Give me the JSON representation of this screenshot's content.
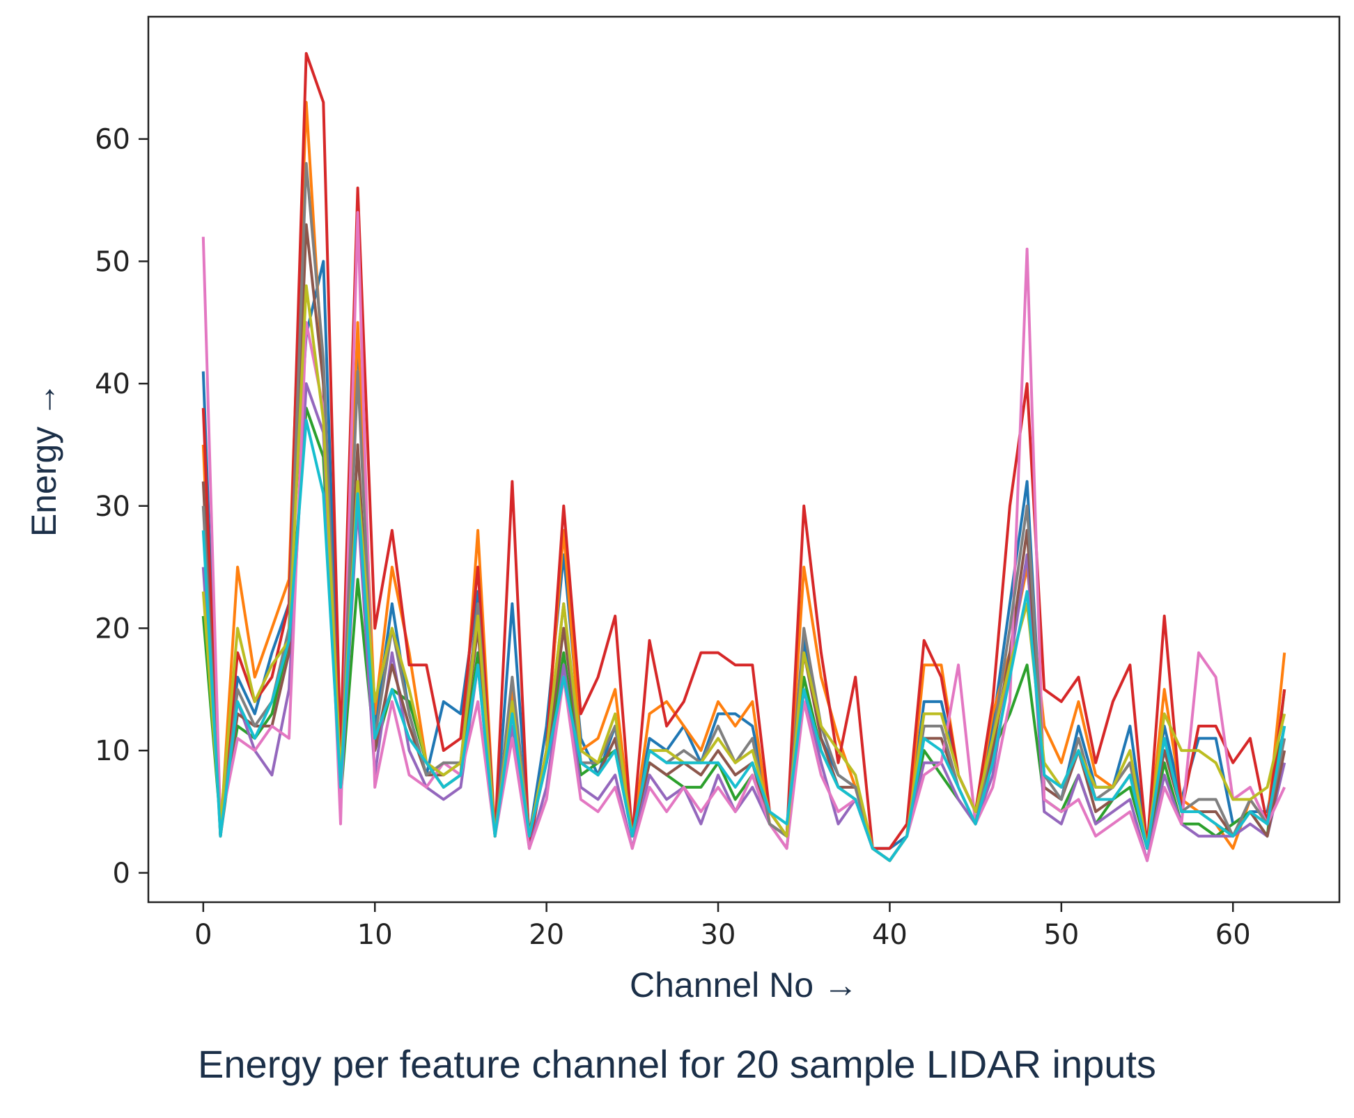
{
  "chart_data": {
    "type": "line",
    "caption": "Energy per feature channel for 20 sample LIDAR inputs",
    "xlabel": "Channel No →",
    "ylabel": "Energy →",
    "xlim": [
      -3.2,
      66.2
    ],
    "ylim": [
      -2.4,
      70
    ],
    "xticks": [
      0,
      10,
      20,
      30,
      40,
      50,
      60
    ],
    "yticks": [
      0,
      10,
      20,
      30,
      40,
      50,
      60
    ],
    "grid": false,
    "legend": "none",
    "x": [
      0,
      1,
      2,
      3,
      4,
      5,
      6,
      7,
      8,
      9,
      10,
      11,
      12,
      13,
      14,
      15,
      16,
      17,
      18,
      19,
      20,
      21,
      22,
      23,
      24,
      25,
      26,
      27,
      28,
      29,
      30,
      31,
      32,
      33,
      34,
      35,
      36,
      37,
      38,
      39,
      40,
      41,
      42,
      43,
      44,
      45,
      46,
      47,
      48,
      49,
      50,
      51,
      52,
      53,
      54,
      55,
      56,
      57,
      58,
      59,
      60,
      61,
      62,
      63
    ],
    "series": [
      {
        "color": "#1f77b4",
        "values": [
          41,
          3,
          16,
          13,
          18,
          22,
          44,
          50,
          8,
          44,
          12,
          22,
          13,
          8,
          14,
          13,
          23,
          3,
          22,
          3,
          12,
          26,
          11,
          8,
          12,
          3,
          11,
          10,
          12,
          9,
          13,
          13,
          12,
          5,
          3,
          19,
          11,
          8,
          7,
          2,
          2,
          3,
          14,
          14,
          8,
          5,
          12,
          22,
          32,
          7,
          6,
          12,
          7,
          7,
          12,
          2,
          12,
          6,
          11,
          11,
          4,
          5,
          5,
          12
        ]
      },
      {
        "color": "#ff7f0e",
        "values": [
          35,
          3,
          25,
          16,
          20,
          24,
          63,
          40,
          6,
          45,
          13,
          25,
          18,
          9,
          7,
          8,
          28,
          3,
          15,
          3,
          10,
          28,
          10,
          11,
          15,
          3,
          13,
          14,
          12,
          10,
          14,
          12,
          14,
          4,
          3,
          25,
          16,
          11,
          7,
          2,
          1,
          3,
          17,
          17,
          8,
          5,
          13,
          18,
          25,
          12,
          9,
          14,
          8,
          7,
          9,
          2,
          15,
          6,
          5,
          4,
          2,
          6,
          4,
          18
        ]
      },
      {
        "color": "#2ca02c",
        "values": [
          21,
          4,
          12,
          11,
          13,
          19,
          38,
          34,
          6,
          24,
          10,
          15,
          14,
          9,
          7,
          8,
          18,
          3,
          12,
          3,
          9,
          18,
          8,
          9,
          10,
          3,
          9,
          8,
          7,
          7,
          9,
          6,
          8,
          4,
          3,
          16,
          10,
          7,
          6,
          2,
          1,
          3,
          10,
          8,
          6,
          4,
          10,
          13,
          17,
          6,
          5,
          8,
          4,
          6,
          7,
          2,
          9,
          4,
          4,
          3,
          4,
          5,
          3,
          15
        ]
      },
      {
        "color": "#d62728",
        "values": [
          38,
          3,
          18,
          14,
          16,
          22,
          67,
          63,
          10,
          56,
          20,
          28,
          17,
          17,
          10,
          11,
          25,
          3,
          32,
          2,
          10,
          30,
          13,
          16,
          21,
          3,
          19,
          12,
          14,
          18,
          18,
          17,
          17,
          5,
          3,
          30,
          18,
          9,
          16,
          2,
          2,
          4,
          19,
          16,
          8,
          5,
          14,
          30,
          40,
          15,
          14,
          16,
          9,
          14,
          17,
          2,
          21,
          5,
          12,
          12,
          9,
          11,
          4,
          15
        ]
      },
      {
        "color": "#9467bd",
        "values": [
          25,
          4,
          14,
          10,
          8,
          15,
          40,
          36,
          6,
          30,
          8,
          18,
          10,
          7,
          6,
          7,
          17,
          3,
          12,
          2,
          7,
          17,
          7,
          6,
          8,
          2,
          8,
          6,
          7,
          4,
          8,
          5,
          7,
          4,
          2,
          15,
          9,
          4,
          6,
          2,
          1,
          3,
          9,
          9,
          6,
          4,
          8,
          17,
          26,
          5,
          4,
          8,
          4,
          5,
          6,
          1,
          8,
          4,
          3,
          3,
          3,
          4,
          3,
          9
        ]
      },
      {
        "color": "#8c564b",
        "values": [
          32,
          3,
          13,
          12,
          12,
          18,
          53,
          40,
          7,
          35,
          10,
          17,
          12,
          8,
          8,
          9,
          20,
          3,
          14,
          3,
          9,
          20,
          9,
          8,
          11,
          3,
          9,
          8,
          9,
          8,
          10,
          8,
          9,
          4,
          3,
          18,
          11,
          7,
          7,
          2,
          1,
          3,
          11,
          11,
          7,
          4,
          10,
          18,
          28,
          7,
          6,
          10,
          5,
          6,
          8,
          2,
          10,
          5,
          5,
          5,
          3,
          5,
          3,
          10
        ]
      },
      {
        "color": "#e377c2",
        "values": [
          52,
          4,
          11,
          10,
          12,
          11,
          45,
          38,
          4,
          54,
          7,
          14,
          8,
          7,
          9,
          8,
          14,
          3,
          11,
          2,
          6,
          16,
          6,
          5,
          7,
          2,
          7,
          5,
          7,
          5,
          7,
          5,
          8,
          4,
          2,
          14,
          8,
          5,
          6,
          2,
          1,
          3,
          8,
          9,
          17,
          4,
          7,
          14,
          51,
          6,
          5,
          6,
          3,
          4,
          5,
          1,
          7,
          4,
          18,
          16,
          6,
          7,
          4,
          7
        ]
      },
      {
        "color": "#7f7f7f",
        "values": [
          30,
          3,
          15,
          12,
          14,
          20,
          58,
          42,
          7,
          41,
          11,
          20,
          13,
          8,
          9,
          9,
          22,
          3,
          16,
          3,
          10,
          22,
          9,
          9,
          12,
          3,
          10,
          9,
          10,
          9,
          12,
          9,
          11,
          4,
          3,
          20,
          12,
          8,
          7,
          2,
          1,
          3,
          12,
          12,
          7,
          4,
          11,
          20,
          30,
          8,
          6,
          11,
          6,
          7,
          9,
          2,
          11,
          5,
          6,
          6,
          3,
          6,
          4,
          11
        ]
      },
      {
        "color": "#bcbd22",
        "values": [
          23,
          4,
          20,
          14,
          17,
          19,
          48,
          37,
          8,
          32,
          14,
          20,
          15,
          9,
          8,
          9,
          21,
          3,
          14,
          3,
          10,
          22,
          10,
          9,
          13,
          3,
          10,
          10,
          9,
          9,
          11,
          9,
          10,
          5,
          3,
          18,
          12,
          10,
          8,
          2,
          1,
          3,
          13,
          13,
          8,
          5,
          11,
          17,
          22,
          9,
          7,
          10,
          7,
          7,
          10,
          2,
          13,
          10,
          10,
          9,
          6,
          6,
          7,
          13
        ]
      },
      {
        "color": "#17becf",
        "values": [
          28,
          3,
          14,
          11,
          14,
          19,
          37,
          31,
          7,
          31,
          11,
          15,
          11,
          9,
          7,
          8,
          17,
          3,
          13,
          3,
          9,
          16,
          9,
          8,
          10,
          3,
          10,
          9,
          9,
          9,
          9,
          7,
          9,
          5,
          4,
          15,
          10,
          7,
          6,
          2,
          1,
          3,
          11,
          10,
          7,
          4,
          9,
          16,
          23,
          8,
          7,
          10,
          6,
          6,
          8,
          2,
          11,
          5,
          5,
          4,
          3,
          5,
          4,
          12
        ]
      }
    ]
  }
}
